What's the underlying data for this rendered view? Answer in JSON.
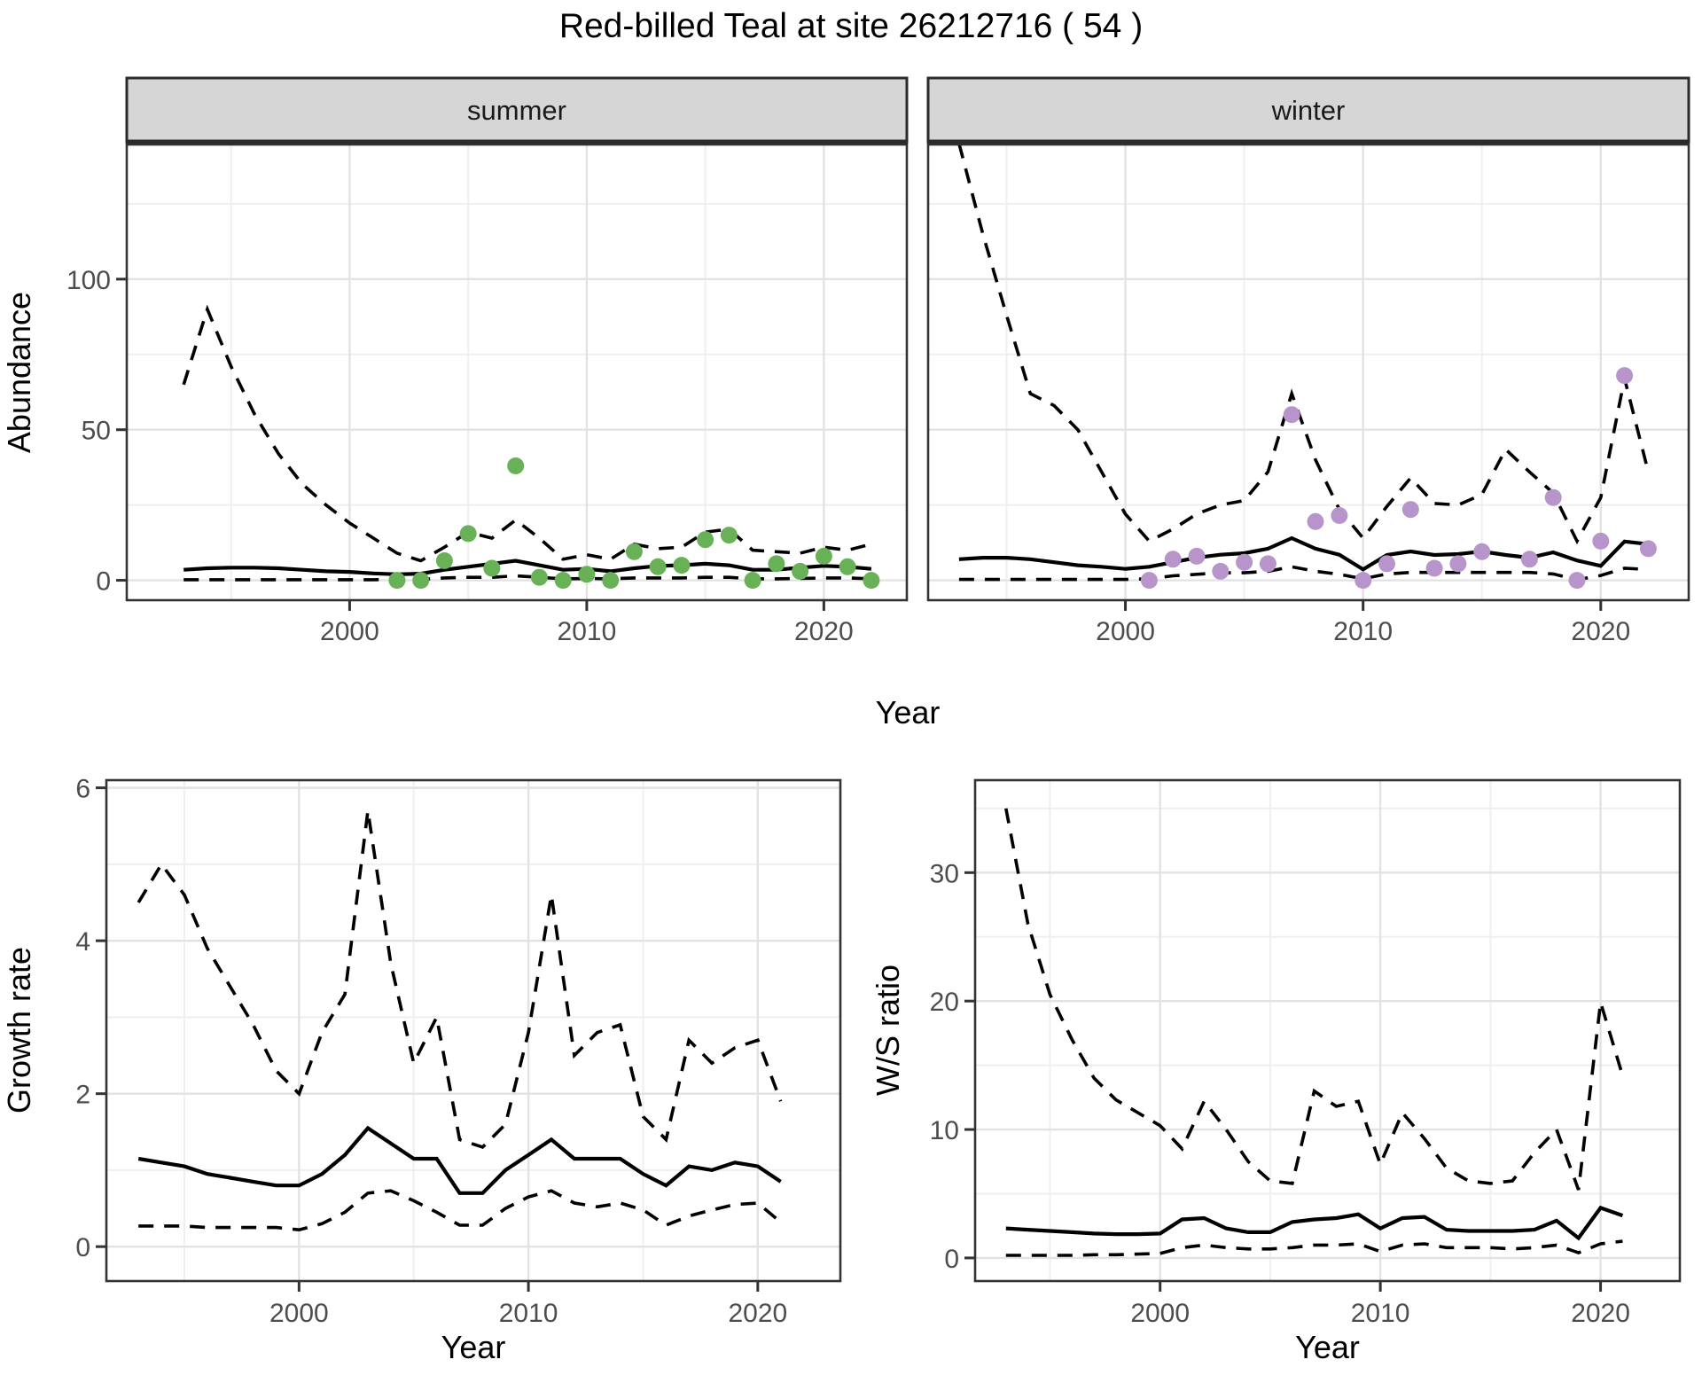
{
  "title": "Red-billed Teal at site 26212716 ( 54 )",
  "colors": {
    "summer_points": "#68b157",
    "winter_points": "#b794ca",
    "line": "#000000",
    "grid_major": "#e2e2e2",
    "grid_minor": "#efefef",
    "strip_bg": "#d6d6d6",
    "strip_border": "#2b2b2b",
    "panel_border": "#333333",
    "axis_text": "#4d4d4d",
    "strip_text": "#1a1a1a",
    "axis_title": "#000000"
  },
  "chart_data": [
    {
      "id": "abundance-summer",
      "type": "line",
      "facet": "summer",
      "xlabel": "Year",
      "ylabel": "Abundance",
      "x_ticks": [
        2000,
        2010,
        2020
      ],
      "x_minor": [
        1995,
        2005,
        2015
      ],
      "y_ticks": [
        0,
        50,
        100
      ],
      "y_minor": [
        25,
        75,
        125
      ],
      "xlim": [
        1990.6,
        2023.5
      ],
      "ylim": [
        -6.6,
        144.7
      ],
      "years": [
        1993,
        1994,
        1995,
        1996,
        1997,
        1998,
        1999,
        2000,
        2001,
        2002,
        2003,
        2004,
        2005,
        2006,
        2007,
        2008,
        2009,
        2010,
        2011,
        2012,
        2013,
        2014,
        2015,
        2016,
        2017,
        2018,
        2019,
        2020,
        2021,
        2022
      ],
      "series": [
        {
          "name": "upper 95% CI",
          "style": "dashed",
          "values": [
            65,
            90,
            71,
            55,
            42,
            32,
            25,
            19,
            14,
            9,
            6.5,
            11,
            16,
            14,
            20,
            14,
            7,
            8.5,
            7,
            12,
            10.5,
            11,
            16,
            17,
            10,
            9.5,
            9,
            11,
            10,
            12
          ]
        },
        {
          "name": "median",
          "style": "solid",
          "values": [
            3.5,
            4,
            4.2,
            4.2,
            4,
            3.5,
            3,
            2.8,
            2.3,
            2,
            2.2,
            3.5,
            4.5,
            5.5,
            6.5,
            5,
            3.5,
            3.8,
            3,
            4,
            4.8,
            5,
            5.5,
            5,
            3.5,
            3.5,
            4.2,
            4.8,
            4.5,
            3.8
          ]
        },
        {
          "name": "lower 95% CI",
          "style": "dashed",
          "values": [
            0.2,
            0.2,
            0.2,
            0.2,
            0.2,
            0.2,
            0.2,
            0.2,
            0.2,
            0.3,
            0.3,
            0.8,
            1,
            1,
            1.5,
            1,
            0.5,
            0.6,
            0.5,
            0.8,
            0.8,
            0.8,
            1,
            1,
            0.5,
            0.5,
            0.6,
            0.8,
            0.8,
            0.5
          ]
        }
      ],
      "points": {
        "color_key": "summer_points",
        "years": [
          2002,
          2003,
          2004,
          2005,
          2006,
          2007,
          2008,
          2009,
          2010,
          2011,
          2012,
          2013,
          2014,
          2015,
          2016,
          2017,
          2018,
          2019,
          2020,
          2021,
          2022
        ],
        "values": [
          0,
          0,
          6.5,
          15.5,
          4,
          38,
          1,
          0,
          2,
          0,
          9.5,
          4.5,
          5,
          13.5,
          15,
          0,
          5.5,
          3,
          8,
          4.5,
          0
        ]
      }
    },
    {
      "id": "abundance-winter",
      "type": "line",
      "facet": "winter",
      "xlabel": "Year",
      "ylabel": "",
      "x_ticks": [
        2000,
        2010,
        2020
      ],
      "x_minor": [
        1995,
        2005,
        2015
      ],
      "y_ticks": [
        0,
        50,
        100
      ],
      "y_minor": [
        25,
        75,
        125
      ],
      "xlim": [
        1991.7,
        2023.7
      ],
      "ylim": [
        -6.6,
        144.7
      ],
      "years": [
        1993,
        1994,
        1995,
        1996,
        1997,
        1998,
        1999,
        2000,
        2001,
        2002,
        2003,
        2004,
        2005,
        2006,
        2007,
        2008,
        2009,
        2010,
        2011,
        2012,
        2013,
        2014,
        2015,
        2016,
        2017,
        2018,
        2019,
        2020,
        2021,
        2022
      ],
      "series": [
        {
          "name": "upper 95% CI",
          "style": "dashed",
          "values": [
            145,
            115,
            88,
            62,
            58,
            50,
            36,
            22,
            13,
            17,
            22,
            25,
            26.5,
            36,
            62,
            40,
            23.5,
            14,
            24.5,
            34,
            25.5,
            25,
            28.5,
            43.5,
            36,
            29,
            13,
            27.5,
            67,
            36
          ]
        },
        {
          "name": "median",
          "style": "solid",
          "values": [
            7,
            7.5,
            7.5,
            7,
            6,
            5,
            4.5,
            3.8,
            4.5,
            6,
            7.5,
            8.5,
            9,
            10.5,
            14,
            10.5,
            8.5,
            3.6,
            8.4,
            9.6,
            8.4,
            8.7,
            9.6,
            8.4,
            7.5,
            9.3,
            6.6,
            4.8,
            12.9,
            12
          ]
        },
        {
          "name": "lower 95% CI",
          "style": "dashed",
          "values": [
            0.3,
            0.3,
            0.3,
            0.3,
            0.3,
            0.3,
            0.3,
            0.3,
            0.5,
            1.5,
            2,
            2.5,
            2.5,
            3,
            4.5,
            3,
            2,
            0.5,
            2.1,
            2.6,
            2.6,
            2.6,
            2.6,
            2.6,
            2.6,
            2.1,
            0.2,
            1.6,
            4,
            3.6
          ]
        }
      ],
      "points": {
        "color_key": "winter_points",
        "years": [
          2001,
          2002,
          2003,
          2004,
          2005,
          2006,
          2007,
          2008,
          2009,
          2010,
          2011,
          2012,
          2013,
          2014,
          2015,
          2017,
          2018,
          2019,
          2020,
          2021,
          2022
        ],
        "values": [
          0,
          7,
          8,
          3,
          6,
          5.5,
          55,
          19.5,
          21.5,
          0,
          5.5,
          23.5,
          4,
          5.5,
          9.5,
          7,
          27.5,
          0,
          13,
          68,
          10.5
        ]
      }
    },
    {
      "id": "growth-rate",
      "type": "line",
      "facet": null,
      "xlabel": "Year",
      "ylabel": "Growth rate",
      "x_ticks": [
        2000,
        2010,
        2020
      ],
      "x_minor": [
        1995,
        2005,
        2015
      ],
      "y_ticks": [
        0,
        2,
        4,
        6
      ],
      "y_minor": [
        1,
        3,
        5
      ],
      "xlim": [
        1991.6,
        2023.6
      ],
      "ylim": [
        -0.45,
        6.1
      ],
      "years": [
        1993,
        1994,
        1995,
        1996,
        1997,
        1998,
        1999,
        2000,
        2001,
        2002,
        2003,
        2004,
        2005,
        2006,
        2007,
        2008,
        2009,
        2010,
        2011,
        2012,
        2013,
        2014,
        2015,
        2016,
        2017,
        2018,
        2019,
        2020,
        2021
      ],
      "series": [
        {
          "name": "upper 95% CI",
          "style": "dashed",
          "values": [
            4.5,
            5.0,
            4.6,
            3.9,
            3.4,
            2.9,
            2.3,
            2.0,
            2.8,
            3.3,
            5.7,
            3.7,
            2.4,
            3.0,
            1.4,
            1.3,
            1.6,
            2.8,
            4.6,
            2.5,
            2.8,
            2.9,
            1.7,
            1.4,
            2.7,
            2.4,
            2.6,
            2.7,
            1.9
          ]
        },
        {
          "name": "median",
          "style": "solid",
          "values": [
            1.15,
            1.1,
            1.05,
            0.95,
            0.9,
            0.85,
            0.8,
            0.8,
            0.95,
            1.2,
            1.55,
            1.35,
            1.15,
            1.15,
            0.7,
            0.7,
            1.0,
            1.2,
            1.4,
            1.15,
            1.15,
            1.15,
            0.95,
            0.8,
            1.05,
            1.0,
            1.1,
            1.05,
            0.85
          ]
        },
        {
          "name": "lower 95% CI",
          "style": "dashed",
          "values": [
            0.27,
            0.27,
            0.27,
            0.25,
            0.25,
            0.25,
            0.25,
            0.22,
            0.3,
            0.45,
            0.7,
            0.73,
            0.6,
            0.45,
            0.28,
            0.28,
            0.5,
            0.65,
            0.73,
            0.57,
            0.52,
            0.57,
            0.48,
            0.28,
            0.4,
            0.48,
            0.55,
            0.57,
            0.32
          ]
        }
      ],
      "points": null
    },
    {
      "id": "ws-ratio",
      "type": "line",
      "facet": null,
      "xlabel": "Year",
      "ylabel": "W/S ratio",
      "x_ticks": [
        2000,
        2010,
        2020
      ],
      "x_minor": [
        1995,
        2005,
        2015
      ],
      "y_ticks": [
        0,
        10,
        20,
        30
      ],
      "y_minor": [
        5,
        15,
        25,
        35
      ],
      "xlim": [
        1991.6,
        2023.6
      ],
      "ylim": [
        -1.8,
        37.2
      ],
      "years": [
        1993,
        1994,
        1995,
        1996,
        1997,
        1998,
        1999,
        2000,
        2001,
        2002,
        2003,
        2004,
        2005,
        2006,
        2007,
        2008,
        2009,
        2010,
        2011,
        2012,
        2013,
        2014,
        2015,
        2016,
        2017,
        2018,
        2019,
        2020,
        2021
      ],
      "series": [
        {
          "name": "upper 95% CI",
          "style": "dashed",
          "values": [
            35,
            26,
            20.5,
            17,
            14,
            12.3,
            11.3,
            10.3,
            8.5,
            12.2,
            10,
            7.5,
            6,
            5.8,
            13,
            11.8,
            12.2,
            7.3,
            11.3,
            9.3,
            7,
            6,
            5.8,
            6,
            8.2,
            10,
            5.3,
            19.9,
            14.2
          ]
        },
        {
          "name": "median",
          "style": "solid",
          "values": [
            2.3,
            2.2,
            2.1,
            2.0,
            1.9,
            1.85,
            1.85,
            1.9,
            3.0,
            3.1,
            2.3,
            2.0,
            2.0,
            2.8,
            3.0,
            3.1,
            3.4,
            2.3,
            3.1,
            3.2,
            2.2,
            2.1,
            2.1,
            2.1,
            2.2,
            2.9,
            1.55,
            3.9,
            3.3
          ]
        },
        {
          "name": "lower 95% CI",
          "style": "dashed",
          "values": [
            0.2,
            0.2,
            0.2,
            0.2,
            0.25,
            0.25,
            0.3,
            0.35,
            0.8,
            1.0,
            0.8,
            0.7,
            0.7,
            0.8,
            1.0,
            1.0,
            1.1,
            0.5,
            1.0,
            1.1,
            0.8,
            0.8,
            0.8,
            0.7,
            0.8,
            1.0,
            0.4,
            1.1,
            1.3
          ]
        }
      ],
      "points": null
    }
  ]
}
